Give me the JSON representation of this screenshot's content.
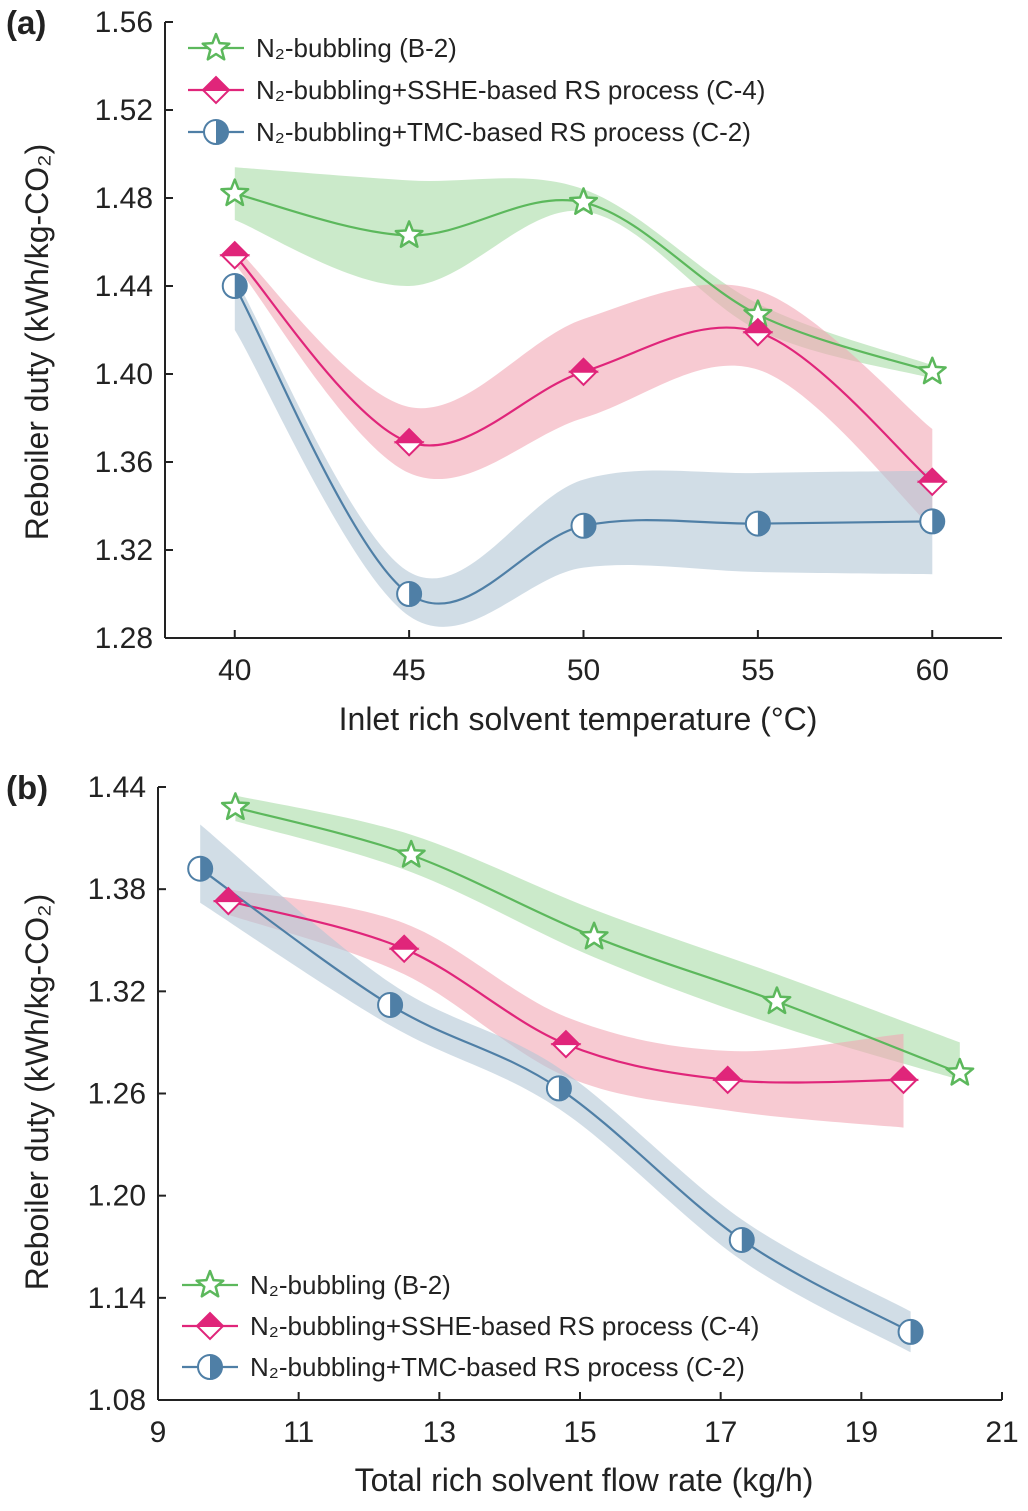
{
  "chart_data": [
    {
      "panel": "(a)",
      "type": "line",
      "xlabel": "Inlet rich solvent temperature (°C)",
      "ylabel": "Reboiler duty (kWh/kg-CO₂)",
      "xlim": [
        38,
        62
      ],
      "ylim": [
        1.28,
        1.56
      ],
      "xticks": [
        "40",
        "45",
        "50",
        "55",
        "60"
      ],
      "yticks": [
        "1.28",
        "1.32",
        "1.36",
        "1.40",
        "1.44",
        "1.48",
        "1.52",
        "1.56"
      ],
      "legend_position": "top-left",
      "x": [
        40,
        45,
        50,
        55,
        60
      ],
      "series": [
        {
          "name": "N₂-bubbling (B-2)",
          "marker": "star",
          "color": "#5cb85c",
          "band_color": "#a9dca6",
          "values": [
            1.482,
            1.463,
            1.478,
            1.427,
            1.401
          ],
          "band_upper": [
            1.494,
            1.488,
            1.484,
            1.432,
            1.404
          ],
          "band_lower": [
            1.47,
            1.44,
            1.474,
            1.42,
            1.398
          ]
        },
        {
          "name": "N₂-bubbling+SSHE-based RS process (C-4)",
          "marker": "diamond",
          "color": "#e0257a",
          "band_color": "#f2a7b4",
          "values": [
            1.454,
            1.369,
            1.401,
            1.419,
            1.351
          ],
          "band_upper": [
            1.458,
            1.385,
            1.425,
            1.438,
            1.375
          ],
          "band_lower": [
            1.45,
            1.355,
            1.38,
            1.402,
            1.33
          ]
        },
        {
          "name": "N₂-bubbling+TMC-based RS process (C-2)",
          "marker": "half-circle",
          "color": "#4f7fa6",
          "band_color": "#b3c6d6",
          "values": [
            1.44,
            1.3,
            1.331,
            1.332,
            1.333
          ],
          "band_upper": [
            1.444,
            1.31,
            1.352,
            1.355,
            1.356
          ],
          "band_lower": [
            1.42,
            1.29,
            1.312,
            1.31,
            1.309
          ]
        }
      ]
    },
    {
      "panel": "(b)",
      "type": "line",
      "xlabel": "Total rich solvent flow rate (kg/h)",
      "ylabel": "Reboiler duty (kWh/kg-CO₂)",
      "xlim": [
        9,
        21
      ],
      "ylim": [
        1.08,
        1.44
      ],
      "xticks": [
        "9",
        "11",
        "13",
        "15",
        "17",
        "19",
        "21"
      ],
      "yticks": [
        "1.08",
        "1.14",
        "1.20",
        "1.26",
        "1.32",
        "1.38",
        "1.44"
      ],
      "legend_position": "bottom-left",
      "series": [
        {
          "name": "N₂-bubbling (B-2)",
          "marker": "star",
          "color": "#5cb85c",
          "band_color": "#a9dca6",
          "x": [
            10.1,
            12.6,
            15.2,
            17.8,
            20.4
          ],
          "values": [
            1.428,
            1.4,
            1.352,
            1.314,
            1.272
          ],
          "band_upper": [
            1.435,
            1.412,
            1.368,
            1.33,
            1.29
          ],
          "band_lower": [
            1.42,
            1.39,
            1.34,
            1.3,
            1.268
          ]
        },
        {
          "name": "N₂-bubbling+SSHE-based RS process (C-4)",
          "marker": "diamond",
          "color": "#e0257a",
          "band_color": "#f2a7b4",
          "x": [
            10.0,
            12.5,
            14.8,
            17.1,
            19.6
          ],
          "values": [
            1.373,
            1.345,
            1.289,
            1.268,
            1.268
          ],
          "band_upper": [
            1.38,
            1.36,
            1.305,
            1.285,
            1.295
          ],
          "band_lower": [
            1.365,
            1.33,
            1.27,
            1.25,
            1.24
          ]
        },
        {
          "name": "N₂-bubbling+TMC-based RS process (C-2)",
          "marker": "half-circle",
          "color": "#4f7fa6",
          "band_color": "#b3c6d6",
          "x": [
            9.6,
            12.3,
            14.7,
            17.3,
            19.7
          ],
          "values": [
            1.392,
            1.312,
            1.263,
            1.174,
            1.12
          ],
          "band_upper": [
            1.418,
            1.325,
            1.275,
            1.186,
            1.132
          ],
          "band_lower": [
            1.372,
            1.3,
            1.251,
            1.162,
            1.108
          ]
        }
      ]
    }
  ]
}
